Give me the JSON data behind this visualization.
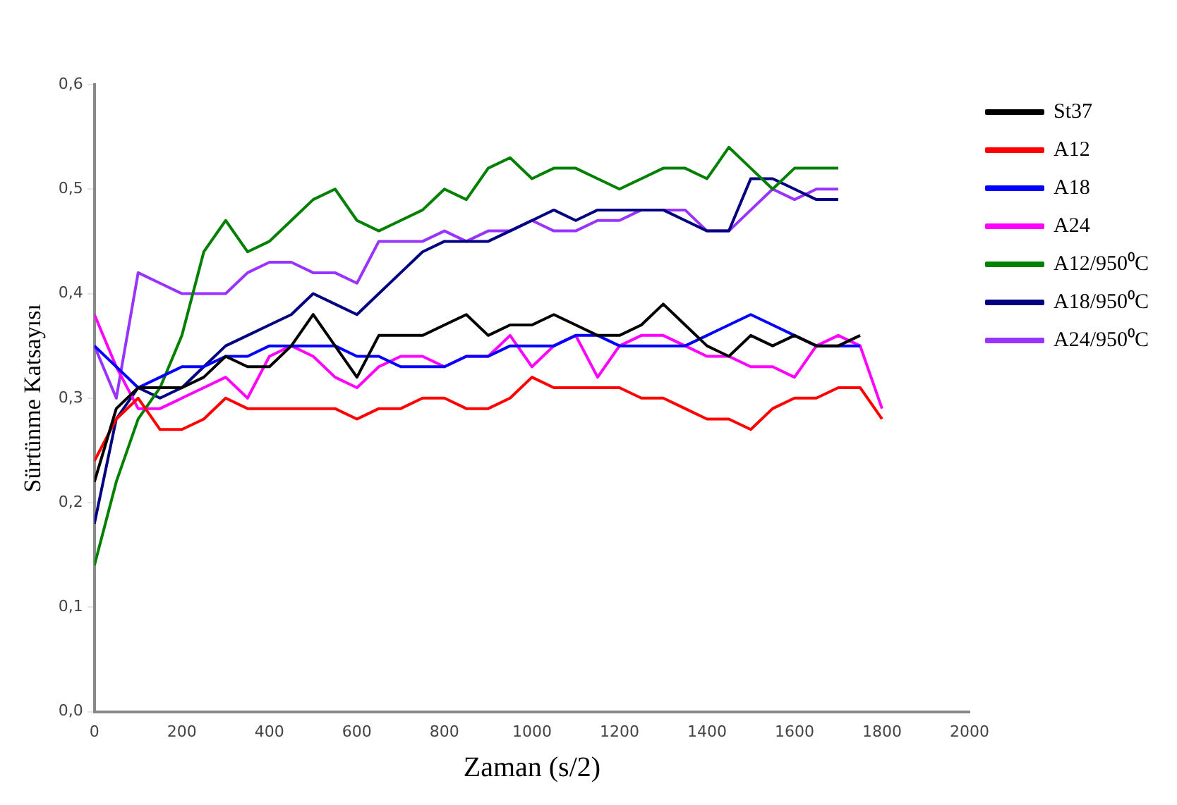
{
  "chart_data": {
    "type": "line",
    "xlabel": "Zaman (s/2)",
    "ylabel": "Sürtünme Katsayısı",
    "x": [
      0,
      50,
      100,
      150,
      200,
      250,
      300,
      350,
      400,
      450,
      500,
      550,
      600,
      650,
      700,
      750,
      800,
      850,
      900,
      950,
      1000,
      1050,
      1100,
      1150,
      1200,
      1250,
      1300,
      1350,
      1400,
      1450,
      1500,
      1550,
      1600,
      1650,
      1700,
      1750,
      1800
    ],
    "xlim": [
      0,
      2000
    ],
    "xticks": [
      0,
      200,
      400,
      600,
      800,
      1000,
      1200,
      1400,
      1600,
      1800,
      2000
    ],
    "ylim": [
      0,
      0.6
    ],
    "yticks": [
      {
        "value": 0,
        "label": "0,0"
      },
      {
        "value": 0.1,
        "label": "0,1"
      },
      {
        "value": 0.2,
        "label": "0,2"
      },
      {
        "value": 0.3,
        "label": "0,3"
      },
      {
        "value": 0.4,
        "label": "0,4"
      },
      {
        "value": 0.5,
        "label": "0,5"
      },
      {
        "value": 0.6,
        "label": "0,6"
      }
    ],
    "legend": "top right",
    "grid": false,
    "marker": "none",
    "line_style": "solid",
    "series": [
      {
        "name": "St37",
        "color": "#000000",
        "values": [
          0.22,
          0.29,
          0.31,
          0.31,
          0.31,
          0.32,
          0.34,
          0.33,
          0.33,
          0.35,
          0.38,
          0.35,
          0.32,
          0.36,
          0.36,
          0.36,
          0.37,
          0.38,
          0.36,
          0.37,
          0.37,
          0.38,
          0.37,
          0.36,
          0.36,
          0.37,
          0.39,
          0.37,
          0.35,
          0.34,
          0.36,
          0.35,
          0.36,
          0.35,
          0.35,
          0.36,
          null
        ]
      },
      {
        "name": "A12",
        "color": "#ff0000",
        "values": [
          0.24,
          0.28,
          0.3,
          0.27,
          0.27,
          0.28,
          0.3,
          0.29,
          0.29,
          0.29,
          0.29,
          0.29,
          0.28,
          0.29,
          0.29,
          0.3,
          0.3,
          0.29,
          0.29,
          0.3,
          0.32,
          0.31,
          0.31,
          0.31,
          0.31,
          0.3,
          0.3,
          0.29,
          0.28,
          0.28,
          0.27,
          0.29,
          0.3,
          0.3,
          0.31,
          0.31,
          0.28
        ]
      },
      {
        "name": "A18",
        "color": "#0000ff",
        "values": [
          0.35,
          0.33,
          0.31,
          0.32,
          0.33,
          0.33,
          0.34,
          0.34,
          0.35,
          0.35,
          0.35,
          0.35,
          0.34,
          0.34,
          0.33,
          0.33,
          0.33,
          0.34,
          0.34,
          0.35,
          0.35,
          0.35,
          0.36,
          0.36,
          0.35,
          0.35,
          0.35,
          0.35,
          0.36,
          0.37,
          0.38,
          0.37,
          0.36,
          0.35,
          0.35,
          0.35,
          null
        ]
      },
      {
        "name": "A24",
        "color": "#ff00ff",
        "values": [
          0.38,
          0.33,
          0.29,
          0.29,
          0.3,
          0.31,
          0.32,
          0.3,
          0.34,
          0.35,
          0.34,
          0.32,
          0.31,
          0.33,
          0.34,
          0.34,
          0.33,
          0.34,
          0.34,
          0.36,
          0.33,
          0.35,
          0.36,
          0.32,
          0.35,
          0.36,
          0.36,
          0.35,
          0.34,
          0.34,
          0.33,
          0.33,
          0.32,
          0.35,
          0.36,
          0.35,
          0.29
        ]
      },
      {
        "name": "A12/950⁰C",
        "color": "#008000",
        "values": [
          0.14,
          0.22,
          0.28,
          0.31,
          0.36,
          0.44,
          0.47,
          0.44,
          0.45,
          0.47,
          0.49,
          0.5,
          0.47,
          0.46,
          0.47,
          0.48,
          0.5,
          0.49,
          0.52,
          0.53,
          0.51,
          0.52,
          0.52,
          0.51,
          0.5,
          0.51,
          0.52,
          0.52,
          0.51,
          0.54,
          0.52,
          0.5,
          0.52,
          0.52,
          0.52,
          null,
          null
        ]
      },
      {
        "name": "A18/950⁰C",
        "color": "#000080",
        "values": [
          0.18,
          0.28,
          0.31,
          0.3,
          0.31,
          0.33,
          0.35,
          0.36,
          0.37,
          0.38,
          0.4,
          0.39,
          0.38,
          0.4,
          0.42,
          0.44,
          0.45,
          0.45,
          0.45,
          0.46,
          0.47,
          0.48,
          0.47,
          0.48,
          0.48,
          0.48,
          0.48,
          0.47,
          0.46,
          0.46,
          0.51,
          0.51,
          0.5,
          0.49,
          0.49,
          null,
          null
        ]
      },
      {
        "name": "A24/950⁰C",
        "color": "#9933ff",
        "values": [
          0.35,
          0.3,
          0.42,
          0.41,
          0.4,
          0.4,
          0.4,
          0.42,
          0.43,
          0.43,
          0.42,
          0.42,
          0.41,
          0.45,
          0.45,
          0.45,
          0.46,
          0.45,
          0.46,
          0.46,
          0.47,
          0.46,
          0.46,
          0.47,
          0.47,
          0.48,
          0.48,
          0.48,
          0.46,
          0.46,
          0.48,
          0.5,
          0.49,
          0.5,
          0.5,
          null,
          null
        ]
      }
    ]
  }
}
